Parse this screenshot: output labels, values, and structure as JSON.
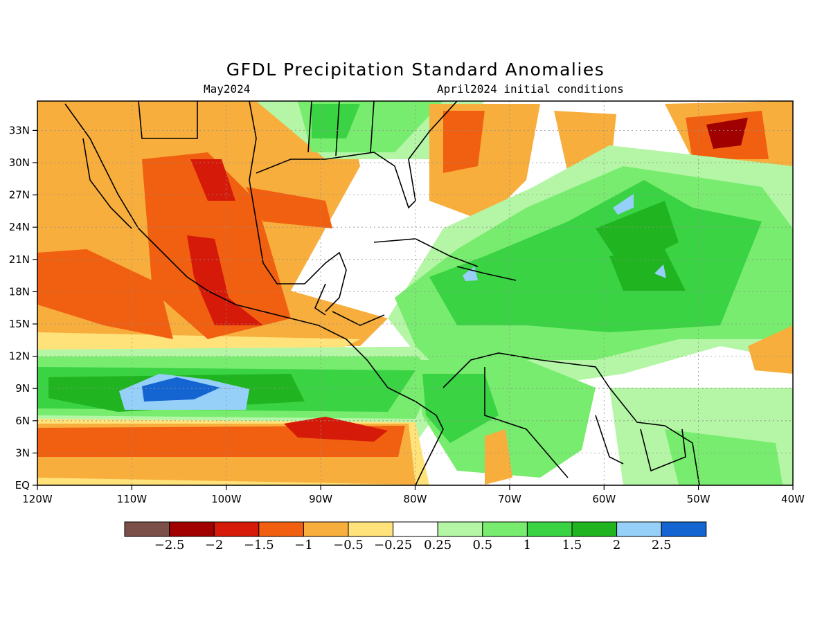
{
  "title": "GFDL Precipitation Standard Anomalies",
  "subtitle_left": "May2024",
  "subtitle_right": "April2024 initial conditions",
  "lon_labels": [
    "120W",
    "110W",
    "100W",
    "90W",
    "80W",
    "70W",
    "60W",
    "50W",
    "40W"
  ],
  "lat_labels": [
    "EQ",
    "3N",
    "6N",
    "9N",
    "12N",
    "15N",
    "18N",
    "21N",
    "24N",
    "27N",
    "30N",
    "33N"
  ],
  "colorbar": {
    "colors": [
      "#7b5048",
      "#a00000",
      "#d61a0a",
      "#f06010",
      "#f8ae3c",
      "#ffe27a",
      "#ffffff",
      "#b4f6a6",
      "#78ec6e",
      "#3ad344",
      "#20b420",
      "#96d0f8",
      "#1464d2"
    ],
    "labels": [
      "−2.5",
      "−2",
      "−1.5",
      "−1",
      "−0.5",
      "−0.25",
      "0.25",
      "0.5",
      "1",
      "1.5",
      "2",
      "2.5"
    ]
  }
}
